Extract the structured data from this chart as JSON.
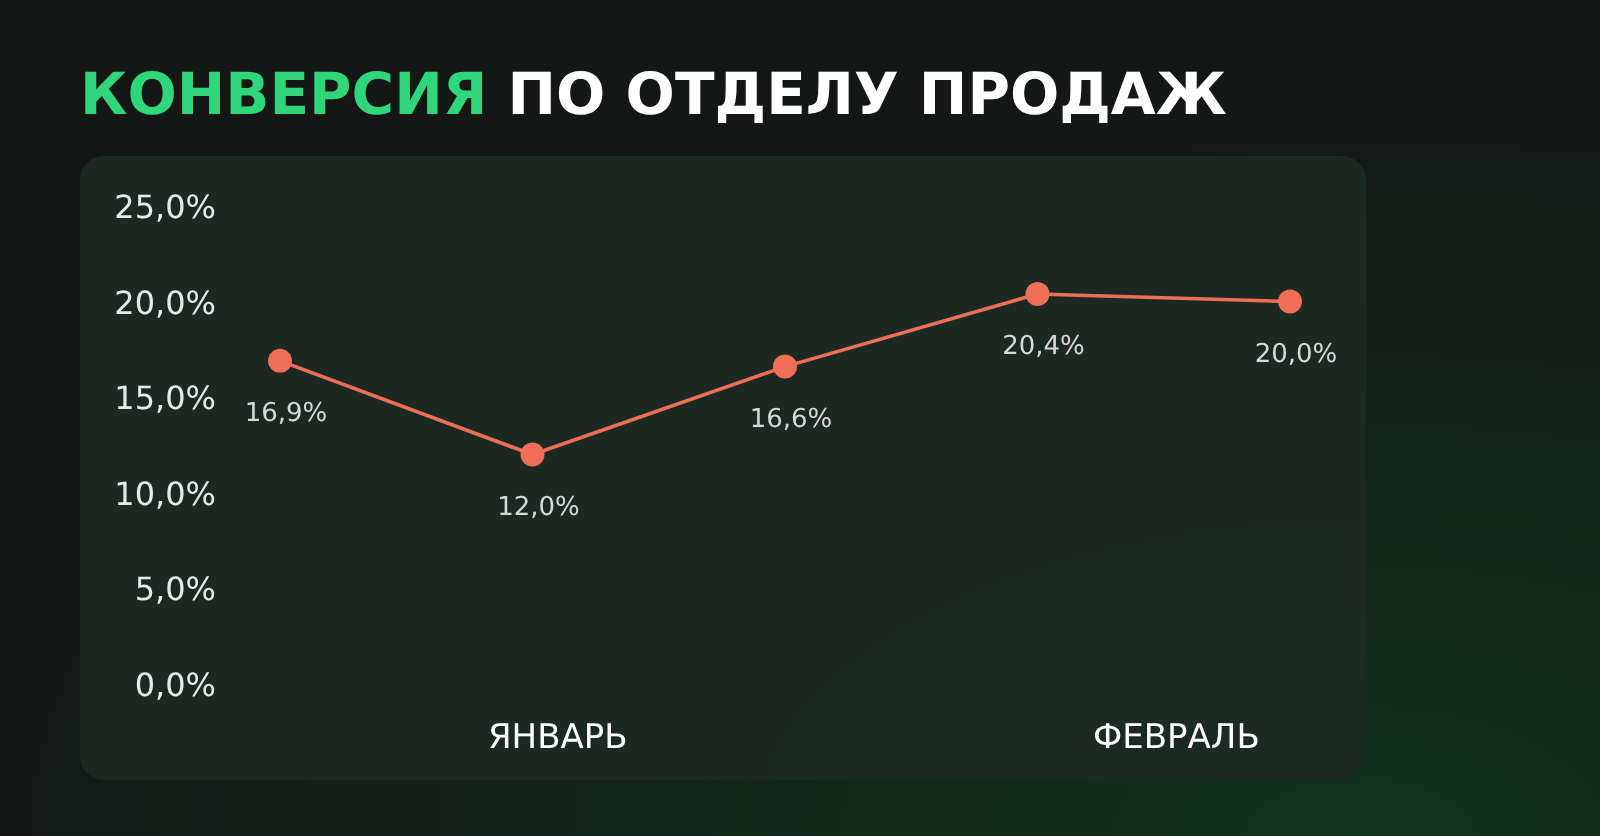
{
  "chart_data": {
    "type": "line",
    "title": "КОНВЕРСИЯ ПО ОТДЕЛУ ПРОДАЖ",
    "categories": [
      null,
      null,
      null,
      null,
      null
    ],
    "series": [
      {
        "color": "#ee6f55",
        "values": [
          16.9,
          12.0,
          16.6,
          20.4,
          20.0
        ]
      }
    ],
    "value_labels": [
      "16,9%",
      "12,0%",
      "16,6%",
      "20,4%",
      "20,0%"
    ],
    "ylim": [
      0,
      25
    ],
    "yticks": [
      {
        "value": 0,
        "label": "0,0%"
      },
      {
        "value": 5,
        "label": "5,0%"
      },
      {
        "value": 10,
        "label": "10,0%"
      },
      {
        "value": 15,
        "label": "15,0%"
      },
      {
        "value": 20,
        "label": "20,0%"
      },
      {
        "value": 25,
        "label": "25,0%"
      }
    ],
    "annotations": [
      "ЯНВАРЬ",
      "ФЕВРАЛЬ"
    ],
    "marker": "circle",
    "line_style": "solid"
  }
}
